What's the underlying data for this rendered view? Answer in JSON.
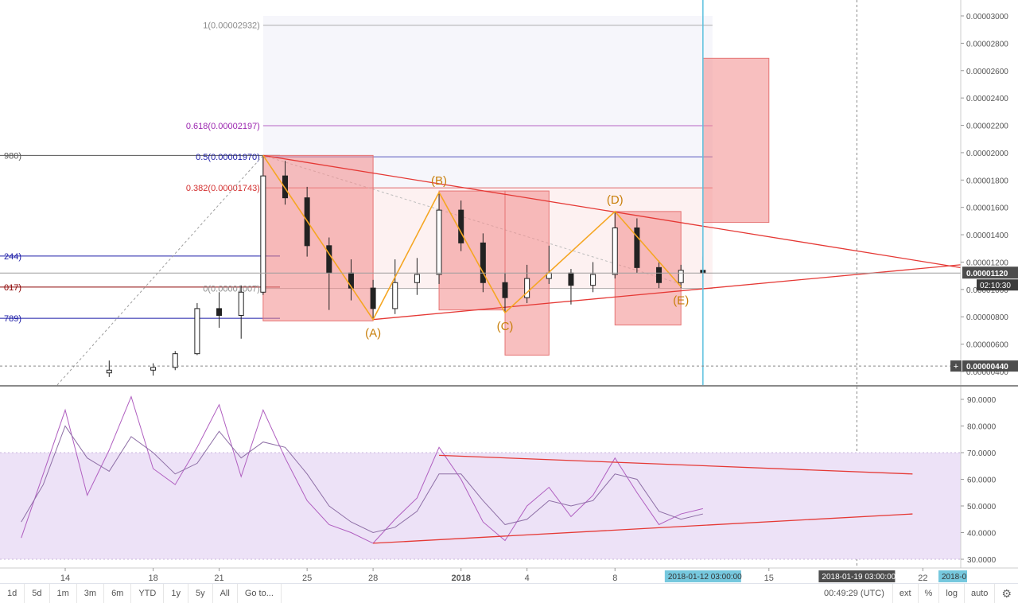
{
  "chart_data": [
    {
      "type": "candlestick",
      "ylim": [
        3.5e-06,
        3.2e-06
      ],
      "y_ticks": [
        "0.00000400",
        "0.00000600",
        "0.00000800",
        "0.00001000",
        "0.00001200",
        "0.00001400",
        "0.00001600",
        "0.00001800",
        "0.00002000",
        "0.00002200",
        "0.00002400",
        "0.00002600",
        "0.00002800",
        "0.00003000"
      ],
      "current_price": "0.00001120",
      "countdown": "02:10:30",
      "crosshair_price": "0.00000440",
      "fib_levels": [
        {
          "label": "1(0.00002932)",
          "value": 2.932e-05,
          "color": "#8c8c8c"
        },
        {
          "label": "0.618(0.00002197)",
          "value": 2.197e-05,
          "color": "#9c27b0"
        },
        {
          "label": "0.5(0.00001970)",
          "value": 1.97e-05,
          "color": "#1a1aa6"
        },
        {
          "label": "0.382(0.00001743)",
          "value": 1.743e-05,
          "color": "#d32f2f"
        },
        {
          "label": "0(0.00001007)",
          "value": 1.007e-05,
          "color": "#8c8c8c"
        }
      ],
      "left_levels": [
        {
          "label": "980)",
          "value": 1.98e-05,
          "color": "#555555"
        },
        {
          "label": "244)",
          "value": 1.244e-05,
          "color": "#1a1aa6"
        },
        {
          "label": "017)",
          "value": 1.017e-05,
          "color": "#8b0000"
        },
        {
          "label": "789)",
          "value": 7.89e-06,
          "color": "#1a1aa6"
        }
      ],
      "wave_labels": [
        {
          "text": "(A)",
          "date": "2017-12-28",
          "value": 7.8e-06
        },
        {
          "text": "(B)",
          "date": "2017-12-31",
          "value": 1.71e-05
        },
        {
          "text": "(C)",
          "date": "2018-01-03",
          "value": 8.3e-06
        },
        {
          "text": "(D)",
          "date": "2018-01-08",
          "value": 1.57e-05
        },
        {
          "text": "(E)",
          "date": "2018-01-11",
          "value": 1.02e-05
        }
      ],
      "wave_points": [
        {
          "date": "2017-12-23",
          "value": 1.98e-05
        },
        {
          "date": "2017-12-28",
          "value": 7.8e-06
        },
        {
          "date": "2017-12-31",
          "value": 1.71e-05
        },
        {
          "date": "2018-01-03",
          "value": 8.3e-06
        },
        {
          "date": "2018-01-08",
          "value": 1.57e-05
        },
        {
          "date": "2018-01-11",
          "value": 1.02e-05
        }
      ],
      "triangle_upper": [
        {
          "date": "2017-12-23",
          "value": 1.98e-05
        },
        {
          "date": "2018-01-19",
          "value": 1.16e-05
        }
      ],
      "triangle_lower": [
        {
          "date": "2017-12-28",
          "value": 7.8e-06
        },
        {
          "date": "2018-01-19",
          "value": 1.18e-05
        }
      ],
      "zones": [
        {
          "date_from": "2017-12-23",
          "date_to": "2017-12-28",
          "from": 7.7e-06,
          "to": 1.98e-05
        },
        {
          "date_from": "2017-12-31",
          "date_to": "2018-01-03",
          "from": 8.5e-06,
          "to": 1.72e-05
        },
        {
          "date_from": "2018-01-03",
          "date_to": "2018-01-05",
          "from": 5.2e-06,
          "to": 1.72e-05
        },
        {
          "date_from": "2018-01-08",
          "date_to": "2018-01-11",
          "from": 7.4e-06,
          "to": 1.57e-05
        },
        {
          "date_from": "2018-01-12",
          "date_to": "2018-01-15",
          "from": 1.49e-05,
          "to": 2.69e-05
        }
      ],
      "candles": [
        {
          "date": "2017-12-16",
          "open": 3.9e-06,
          "high": 4.8e-06,
          "low": 3.6e-06,
          "close": 4.1e-06
        },
        {
          "date": "2017-12-18",
          "open": 4.1e-06,
          "high": 4.6e-06,
          "low": 3.7e-06,
          "close": 4.3e-06
        },
        {
          "date": "2017-12-19",
          "open": 4.3e-06,
          "high": 5.5e-06,
          "low": 4.1e-06,
          "close": 5.3e-06
        },
        {
          "date": "2017-12-20",
          "open": 5.3e-06,
          "high": 9e-06,
          "low": 5.2e-06,
          "close": 8.6e-06
        },
        {
          "date": "2017-12-21",
          "open": 8.6e-06,
          "high": 9.8e-06,
          "low": 7.2e-06,
          "close": 8.1e-06
        },
        {
          "date": "2017-12-22",
          "open": 8.1e-06,
          "high": 1.03e-05,
          "low": 6.4e-06,
          "close": 9.8e-06
        },
        {
          "date": "2017-12-23",
          "open": 9.8e-06,
          "high": 1.98e-05,
          "low": 9.6e-06,
          "close": 1.83e-05
        },
        {
          "date": "2017-12-24",
          "open": 1.83e-05,
          "high": 1.94e-05,
          "low": 1.62e-05,
          "close": 1.67e-05
        },
        {
          "date": "2017-12-25",
          "open": 1.67e-05,
          "high": 1.75e-05,
          "low": 1.24e-05,
          "close": 1.32e-05
        },
        {
          "date": "2017-12-26",
          "open": 1.32e-05,
          "high": 1.38e-05,
          "low": 8.5e-06,
          "close": 1.12e-05
        },
        {
          "date": "2017-12-27",
          "open": 1.12e-05,
          "high": 1.22e-05,
          "low": 9.2e-06,
          "close": 1.01e-05
        },
        {
          "date": "2017-12-28",
          "open": 1.01e-05,
          "high": 1.07e-05,
          "low": 7.8e-06,
          "close": 8.6e-06
        },
        {
          "date": "2017-12-29",
          "open": 8.6e-06,
          "high": 1.22e-05,
          "low": 8.2e-06,
          "close": 1.05e-05
        },
        {
          "date": "2017-12-30",
          "open": 1.05e-05,
          "high": 1.23e-05,
          "low": 9.6e-06,
          "close": 1.11e-05
        },
        {
          "date": "2017-12-31",
          "open": 1.11e-05,
          "high": 1.71e-05,
          "low": 1.04e-05,
          "close": 1.58e-05
        },
        {
          "date": "2018-01-01",
          "open": 1.58e-05,
          "high": 1.65e-05,
          "low": 1.28e-05,
          "close": 1.34e-05
        },
        {
          "date": "2018-01-02",
          "open": 1.34e-05,
          "high": 1.41e-05,
          "low": 9.8e-06,
          "close": 1.05e-05
        },
        {
          "date": "2018-01-03",
          "open": 1.05e-05,
          "high": 1.12e-05,
          "low": 8.3e-06,
          "close": 9.4e-06
        },
        {
          "date": "2018-01-04",
          "open": 9.4e-06,
          "high": 1.18e-05,
          "low": 9e-06,
          "close": 1.08e-05
        },
        {
          "date": "2018-01-05",
          "open": 1.08e-05,
          "high": 1.32e-05,
          "low": 1.04e-05,
          "close": 1.12e-05
        },
        {
          "date": "2018-01-06",
          "open": 1.12e-05,
          "high": 1.15e-05,
          "low": 8.9e-06,
          "close": 1.03e-05
        },
        {
          "date": "2018-01-07",
          "open": 1.03e-05,
          "high": 1.2e-05,
          "low": 9.8e-06,
          "close": 1.11e-05
        },
        {
          "date": "2018-01-08",
          "open": 1.11e-05,
          "high": 1.57e-05,
          "low": 1.08e-05,
          "close": 1.45e-05
        },
        {
          "date": "2018-01-09",
          "open": 1.45e-05,
          "high": 1.52e-05,
          "low": 1.12e-05,
          "close": 1.16e-05
        },
        {
          "date": "2018-01-10",
          "open": 1.16e-05,
          "high": 1.21e-05,
          "low": 1.01e-05,
          "close": 1.05e-05
        },
        {
          "date": "2018-01-11",
          "open": 1.05e-05,
          "high": 1.18e-05,
          "low": 1.01e-05,
          "close": 1.14e-05
        },
        {
          "date": "2018-01-12",
          "open": 1.14e-05,
          "high": 1.24e-05,
          "low": 1.09e-05,
          "close": 1.12e-05
        }
      ]
    },
    {
      "type": "line",
      "ylim": [
        25,
        95
      ],
      "y_ticks": [
        "30.0000",
        "40.0000",
        "50.0000",
        "60.0000",
        "70.0000",
        "80.0000",
        "90.0000"
      ],
      "band": [
        30,
        70
      ],
      "series": [
        {
          "color": "#b05fc0",
          "values": [
            {
              "date": "2017-12-12",
              "value": 38
            },
            {
              "date": "2017-12-13",
              "value": 62
            },
            {
              "date": "2017-12-14",
              "value": 86
            },
            {
              "date": "2017-12-15",
              "value": 54
            },
            {
              "date": "2017-12-16",
              "value": 71
            },
            {
              "date": "2017-12-17",
              "value": 91
            },
            {
              "date": "2017-12-18",
              "value": 64
            },
            {
              "date": "2017-12-19",
              "value": 58
            },
            {
              "date": "2017-12-20",
              "value": 72
            },
            {
              "date": "2017-12-21",
              "value": 88
            },
            {
              "date": "2017-12-22",
              "value": 61
            },
            {
              "date": "2017-12-23",
              "value": 86
            },
            {
              "date": "2017-12-24",
              "value": 68
            },
            {
              "date": "2017-12-25",
              "value": 52
            },
            {
              "date": "2017-12-26",
              "value": 43
            },
            {
              "date": "2017-12-27",
              "value": 40
            },
            {
              "date": "2017-12-28",
              "value": 36
            },
            {
              "date": "2017-12-29",
              "value": 45
            },
            {
              "date": "2017-12-30",
              "value": 53
            },
            {
              "date": "2017-12-31",
              "value": 72
            },
            {
              "date": "2018-01-01",
              "value": 60
            },
            {
              "date": "2018-01-02",
              "value": 44
            },
            {
              "date": "2018-01-03",
              "value": 37
            },
            {
              "date": "2018-01-04",
              "value": 50
            },
            {
              "date": "2018-01-05",
              "value": 57
            },
            {
              "date": "2018-01-06",
              "value": 46
            },
            {
              "date": "2018-01-07",
              "value": 54
            },
            {
              "date": "2018-01-08",
              "value": 68
            },
            {
              "date": "2018-01-09",
              "value": 55
            },
            {
              "date": "2018-01-10",
              "value": 43
            },
            {
              "date": "2018-01-11",
              "value": 47
            },
            {
              "date": "2018-01-12",
              "value": 49
            }
          ]
        },
        {
          "color": "#8e6fa6",
          "values": [
            {
              "date": "2017-12-12",
              "value": 44
            },
            {
              "date": "2017-12-13",
              "value": 58
            },
            {
              "date": "2017-12-14",
              "value": 80
            },
            {
              "date": "2017-12-15",
              "value": 68
            },
            {
              "date": "2017-12-16",
              "value": 63
            },
            {
              "date": "2017-12-17",
              "value": 76
            },
            {
              "date": "2017-12-18",
              "value": 70
            },
            {
              "date": "2017-12-19",
              "value": 62
            },
            {
              "date": "2017-12-20",
              "value": 66
            },
            {
              "date": "2017-12-21",
              "value": 78
            },
            {
              "date": "2017-12-22",
              "value": 68
            },
            {
              "date": "2017-12-23",
              "value": 74
            },
            {
              "date": "2017-12-24",
              "value": 72
            },
            {
              "date": "2017-12-25",
              "value": 62
            },
            {
              "date": "2017-12-26",
              "value": 50
            },
            {
              "date": "2017-12-27",
              "value": 44
            },
            {
              "date": "2017-12-28",
              "value": 40
            },
            {
              "date": "2017-12-29",
              "value": 42
            },
            {
              "date": "2017-12-30",
              "value": 48
            },
            {
              "date": "2017-12-31",
              "value": 62
            },
            {
              "date": "2018-01-01",
              "value": 62
            },
            {
              "date": "2018-01-02",
              "value": 52
            },
            {
              "date": "2018-01-03",
              "value": 43
            },
            {
              "date": "2018-01-04",
              "value": 45
            },
            {
              "date": "2018-01-05",
              "value": 52
            },
            {
              "date": "2018-01-06",
              "value": 50
            },
            {
              "date": "2018-01-07",
              "value": 52
            },
            {
              "date": "2018-01-08",
              "value": 62
            },
            {
              "date": "2018-01-09",
              "value": 60
            },
            {
              "date": "2018-01-10",
              "value": 48
            },
            {
              "date": "2018-01-11",
              "value": 45
            },
            {
              "date": "2018-01-12",
              "value": 47
            }
          ]
        }
      ],
      "trend_upper": [
        {
          "date": "2017-12-31",
          "value": 69
        },
        {
          "date": "2018-01-19",
          "value": 62
        }
      ],
      "trend_lower": [
        {
          "date": "2017-12-28",
          "value": 36
        },
        {
          "date": "2018-01-19",
          "value": 47
        }
      ]
    }
  ],
  "x_axis": {
    "labels": [
      {
        "text": "14",
        "date": "2017-12-14"
      },
      {
        "text": "18",
        "date": "2017-12-18"
      },
      {
        "text": "21",
        "date": "2017-12-21"
      },
      {
        "text": "25",
        "date": "2017-12-25"
      },
      {
        "text": "28",
        "date": "2017-12-28"
      },
      {
        "text": "2018",
        "date": "2018-01-01"
      },
      {
        "text": "4",
        "date": "2018-01-04"
      },
      {
        "text": "8",
        "date": "2018-01-08"
      },
      {
        "text": "15",
        "date": "2018-01-15"
      },
      {
        "text": "22",
        "date": "2018-01-22"
      }
    ],
    "highlight_labels": [
      {
        "text": "2018-01-12 03:00:00",
        "date": "2018-01-12",
        "color": "#76c8de",
        "text_color": "#333333"
      },
      {
        "text": "2018-01-19 03:00:00",
        "date": "2018-01-19",
        "color": "#4d4d4d",
        "text_color": "#ffffff"
      },
      {
        "text": "2018-0",
        "date": "2018-01-23",
        "color": "#76c8de",
        "text_color": "#333333"
      }
    ],
    "vline_date": "2018-01-12",
    "dashed_date": "2018-01-19"
  },
  "toolbar": {
    "ranges": [
      "1d",
      "5d",
      "1m",
      "3m",
      "6m",
      "YTD",
      "1y",
      "5y",
      "All",
      "Go to..."
    ],
    "clock": "00:49:29 (UTC)",
    "options": [
      "ext",
      "%",
      "log",
      "auto"
    ],
    "settings_icon": "gear-icon"
  },
  "colors": {
    "zone_fill": "#f28b8b",
    "wave": "#f5a623",
    "wave_label": "#c87f0a",
    "triangle": "#e53935",
    "vline": "#5bc0de",
    "rsi_band": "#ede2f7",
    "current_price_bg": "#4d4d4d",
    "countdown_bg": "#3b3b3b"
  }
}
